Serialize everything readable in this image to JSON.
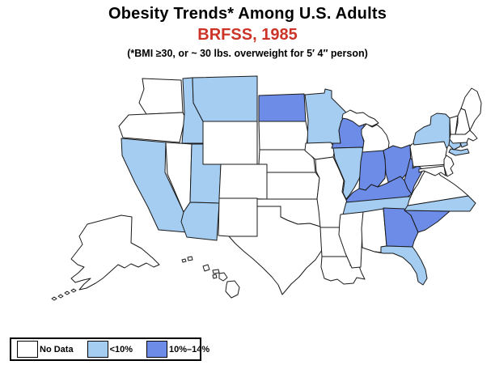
{
  "header": {
    "title": "Obesity Trends* Among U.S. Adults",
    "subtitle": "BRFSS, 1985",
    "note": "(*BMI ≥30, or ~ 30 lbs. overweight for 5′ 4″ person)"
  },
  "colors": {
    "background": "#FFFFFF",
    "title_text": "#000000",
    "year_text": "#CC3428",
    "state_border": "#1A1A1A",
    "no-data": "#FFFFFF",
    "lt-10": "#A5CDF2",
    "10-14": "#6C8CE8"
  },
  "legend": {
    "items": [
      {
        "label": "No Data",
        "category": "no-data",
        "color": "#FFFFFF"
      },
      {
        "label": "<10%",
        "category": "lt-10",
        "color": "#A5CDF2"
      },
      {
        "label": "10%–14%",
        "category": "10-14",
        "color": "#6C8CE8"
      }
    ]
  },
  "chart_data": {
    "type": "choropleth",
    "title": "Obesity Trends* Among U.S. Adults",
    "subtitle": "BRFSS, 1985",
    "note": "(*BMI ≥30, or ~ 30 lbs. overweight for 5′ 4″ person)",
    "legend_position": "bottom-left",
    "categories": [
      {
        "label": "No Data",
        "key": "no-data",
        "color": "#FFFFFF"
      },
      {
        "label": "<10%",
        "key": "lt-10",
        "color": "#A5CDF2"
      },
      {
        "label": "10%–14%",
        "key": "10-14",
        "color": "#6C8CE8"
      }
    ],
    "states": [
      {
        "abbr": "WA",
        "name": "Washington",
        "category": "no-data"
      },
      {
        "abbr": "OR",
        "name": "Oregon",
        "category": "no-data"
      },
      {
        "abbr": "CA",
        "name": "California",
        "category": "lt-10"
      },
      {
        "abbr": "NV",
        "name": "Nevada",
        "category": "no-data"
      },
      {
        "abbr": "ID",
        "name": "Idaho",
        "category": "lt-10"
      },
      {
        "abbr": "MT",
        "name": "Montana",
        "category": "lt-10"
      },
      {
        "abbr": "WY",
        "name": "Wyoming",
        "category": "no-data"
      },
      {
        "abbr": "UT",
        "name": "Utah",
        "category": "lt-10"
      },
      {
        "abbr": "CO",
        "name": "Colorado",
        "category": "no-data"
      },
      {
        "abbr": "AZ",
        "name": "Arizona",
        "category": "lt-10"
      },
      {
        "abbr": "NM",
        "name": "New Mexico",
        "category": "no-data"
      },
      {
        "abbr": "ND",
        "name": "North Dakota",
        "category": "10-14"
      },
      {
        "abbr": "SD",
        "name": "South Dakota",
        "category": "no-data"
      },
      {
        "abbr": "NE",
        "name": "Nebraska",
        "category": "no-data"
      },
      {
        "abbr": "KS",
        "name": "Kansas",
        "category": "no-data"
      },
      {
        "abbr": "OK",
        "name": "Oklahoma",
        "category": "no-data"
      },
      {
        "abbr": "TX",
        "name": "Texas",
        "category": "no-data"
      },
      {
        "abbr": "MN",
        "name": "Minnesota",
        "category": "lt-10"
      },
      {
        "abbr": "IA",
        "name": "Iowa",
        "category": "no-data"
      },
      {
        "abbr": "MO",
        "name": "Missouri",
        "category": "no-data"
      },
      {
        "abbr": "AR",
        "name": "Arkansas",
        "category": "no-data"
      },
      {
        "abbr": "LA",
        "name": "Louisiana",
        "category": "no-data"
      },
      {
        "abbr": "WI",
        "name": "Wisconsin",
        "category": "10-14"
      },
      {
        "abbr": "IL",
        "name": "Illinois",
        "category": "lt-10"
      },
      {
        "abbr": "MI",
        "name": "Michigan",
        "category": "no-data"
      },
      {
        "abbr": "IN",
        "name": "Indiana",
        "category": "10-14"
      },
      {
        "abbr": "OH",
        "name": "Ohio",
        "category": "10-14"
      },
      {
        "abbr": "KY",
        "name": "Kentucky",
        "category": "10-14"
      },
      {
        "abbr": "TN",
        "name": "Tennessee",
        "category": "lt-10"
      },
      {
        "abbr": "MS",
        "name": "Mississippi",
        "category": "no-data"
      },
      {
        "abbr": "AL",
        "name": "Alabama",
        "category": "no-data"
      },
      {
        "abbr": "GA",
        "name": "Georgia",
        "category": "10-14"
      },
      {
        "abbr": "FL",
        "name": "Florida",
        "category": "lt-10"
      },
      {
        "abbr": "SC",
        "name": "South Carolina",
        "category": "10-14"
      },
      {
        "abbr": "NC",
        "name": "North Carolina",
        "category": "lt-10"
      },
      {
        "abbr": "VA",
        "name": "Virginia",
        "category": "no-data"
      },
      {
        "abbr": "WV",
        "name": "West Virginia",
        "category": "10-14"
      },
      {
        "abbr": "MD",
        "name": "Maryland",
        "category": "no-data"
      },
      {
        "abbr": "DE",
        "name": "Delaware",
        "category": "no-data"
      },
      {
        "abbr": "PA",
        "name": "Pennsylvania",
        "category": "no-data"
      },
      {
        "abbr": "NJ",
        "name": "New Jersey",
        "category": "no-data"
      },
      {
        "abbr": "NY",
        "name": "New York",
        "category": "lt-10"
      },
      {
        "abbr": "CT",
        "name": "Connecticut",
        "category": "lt-10"
      },
      {
        "abbr": "RI",
        "name": "Rhode Island",
        "category": "lt-10"
      },
      {
        "abbr": "MA",
        "name": "Massachusetts",
        "category": "no-data"
      },
      {
        "abbr": "VT",
        "name": "Vermont",
        "category": "no-data"
      },
      {
        "abbr": "NH",
        "name": "New Hampshire",
        "category": "no-data"
      },
      {
        "abbr": "ME",
        "name": "Maine",
        "category": "no-data"
      },
      {
        "abbr": "AK",
        "name": "Alaska",
        "category": "no-data"
      },
      {
        "abbr": "HI",
        "name": "Hawaii",
        "category": "no-data"
      }
    ]
  }
}
